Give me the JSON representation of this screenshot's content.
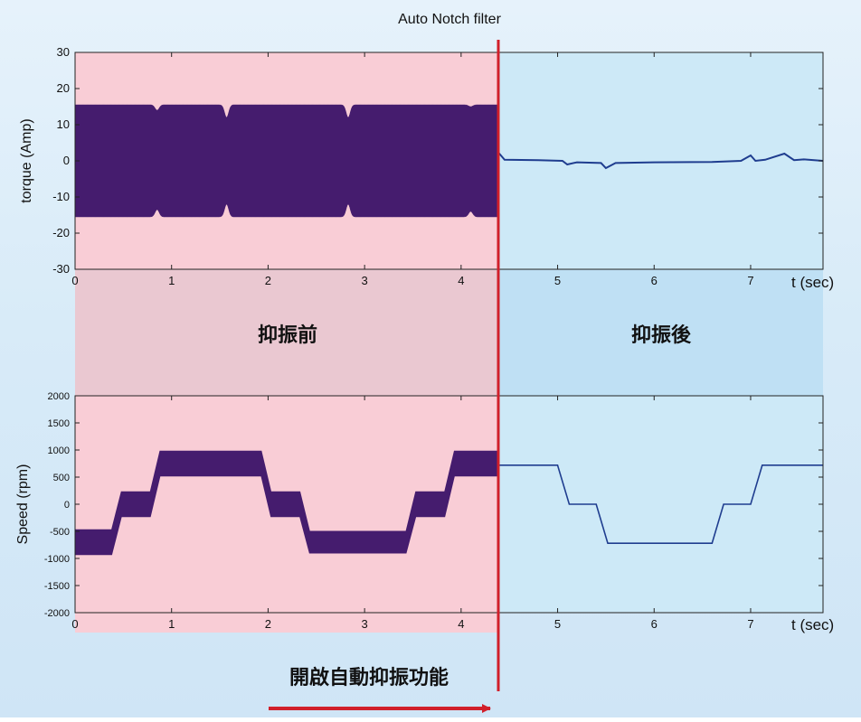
{
  "colors": {
    "before_bg": "#f9cdd6",
    "after_bg": "#cde9f7",
    "band_before": "#eac8d1",
    "band_after": "#bfe0f4",
    "signal_before": "#451c6e",
    "signal_after": "#1f3d8f",
    "marker_line": "#d11f2a"
  },
  "title": "Auto Notch filter",
  "zone_labels": {
    "before": "抑振前",
    "after": "抑振後"
  },
  "annotation": "開啟自動抑振功能",
  "chart_data": [
    {
      "type": "line",
      "ylabel": "torque (Amp)",
      "xlabel": "t (sec)",
      "xlim": [
        0,
        7.75
      ],
      "ylim": [
        -30,
        30
      ],
      "xticks": [
        "0",
        "1",
        "2",
        "3",
        "4",
        "5",
        "6",
        "7"
      ],
      "yticks": [
        "30",
        "20",
        "10",
        "0",
        "-10",
        "-20",
        "-30"
      ],
      "switch_time": 4.38,
      "before_envelope": {
        "upper": 15.5,
        "lower": -15.5
      },
      "envelope_dips": [
        {
          "t": 0.85,
          "upper": 14.0,
          "lower": -13.5
        },
        {
          "t": 1.57,
          "upper": 12.0,
          "lower": -12.0
        },
        {
          "t": 2.83,
          "upper": 12.0,
          "lower": -12.0
        },
        {
          "t": 4.1,
          "upper": 15.0,
          "lower": -14.0
        }
      ],
      "after_series": {
        "t": [
          4.38,
          4.45,
          4.8,
          5.05,
          5.1,
          5.2,
          5.45,
          5.5,
          5.6,
          6.0,
          6.6,
          6.9,
          7.0,
          7.05,
          7.15,
          7.35,
          7.45,
          7.55,
          7.75
        ],
        "y": [
          2.5,
          0.3,
          0.2,
          0.0,
          -1.0,
          -0.4,
          -0.6,
          -2.0,
          -0.6,
          -0.4,
          -0.3,
          0.0,
          1.5,
          0.0,
          0.3,
          2.0,
          0.2,
          0.4,
          0.0
        ]
      }
    },
    {
      "type": "line",
      "ylabel": "Speed (rpm)",
      "xlabel": "t (sec)",
      "xlim": [
        0,
        7.75
      ],
      "ylim": [
        -2000,
        2000
      ],
      "xticks": [
        "0",
        "1",
        "2",
        "3",
        "4",
        "5",
        "6",
        "7"
      ],
      "yticks": [
        "2000",
        "1500",
        "1000",
        "500",
        "0",
        "-500",
        "-1000",
        "-1500",
        "-2000"
      ],
      "switch_time": 4.38,
      "before_band": {
        "t": [
          0,
          0.38,
          0.48,
          0.78,
          0.88,
          1.58,
          1.63,
          1.93,
          2.03,
          2.33,
          2.43,
          3.43,
          3.53,
          3.83,
          3.93,
          4.38
        ],
        "mid": [
          -700,
          -700,
          0,
          0,
          750,
          750,
          750,
          750,
          0,
          0,
          -700,
          -700,
          0,
          0,
          750,
          750
        ],
        "half_width": [
          230,
          230,
          230,
          230,
          230,
          230,
          230,
          230,
          230,
          230,
          200,
          200,
          230,
          230,
          230,
          230
        ]
      },
      "after_series": {
        "t": [
          4.38,
          5.0,
          5.12,
          5.4,
          5.52,
          6.6,
          6.72,
          7.0,
          7.12,
          7.75
        ],
        "y": [
          720,
          720,
          0,
          0,
          -720,
          -720,
          0,
          0,
          720,
          720
        ]
      }
    }
  ]
}
